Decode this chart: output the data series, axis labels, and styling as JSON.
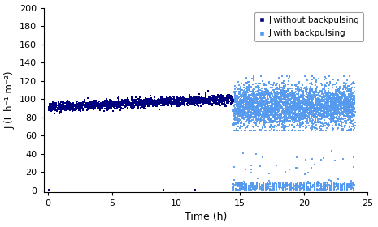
{
  "title": "",
  "xlabel": "Time (h)",
  "ylabel": "J (L.h⁻¹.m⁻²)",
  "xlim": [
    -0.3,
    25
  ],
  "ylim": [
    -2,
    200
  ],
  "xticks": [
    0,
    5,
    10,
    15,
    20,
    25
  ],
  "yticks": [
    0,
    20,
    40,
    60,
    80,
    100,
    120,
    140,
    160,
    180,
    200
  ],
  "series1_color": "#00007F",
  "series2_color": "#5599EE",
  "legend_labels": [
    "J without backpulsing",
    "J with backpulsing"
  ],
  "figsize": [
    4.65,
    2.8
  ],
  "dpi": 100,
  "seed": 42,
  "phase1_start": 0.0,
  "phase1_end": 14.5,
  "phase2_start": 14.5,
  "phase2_end": 24.0
}
